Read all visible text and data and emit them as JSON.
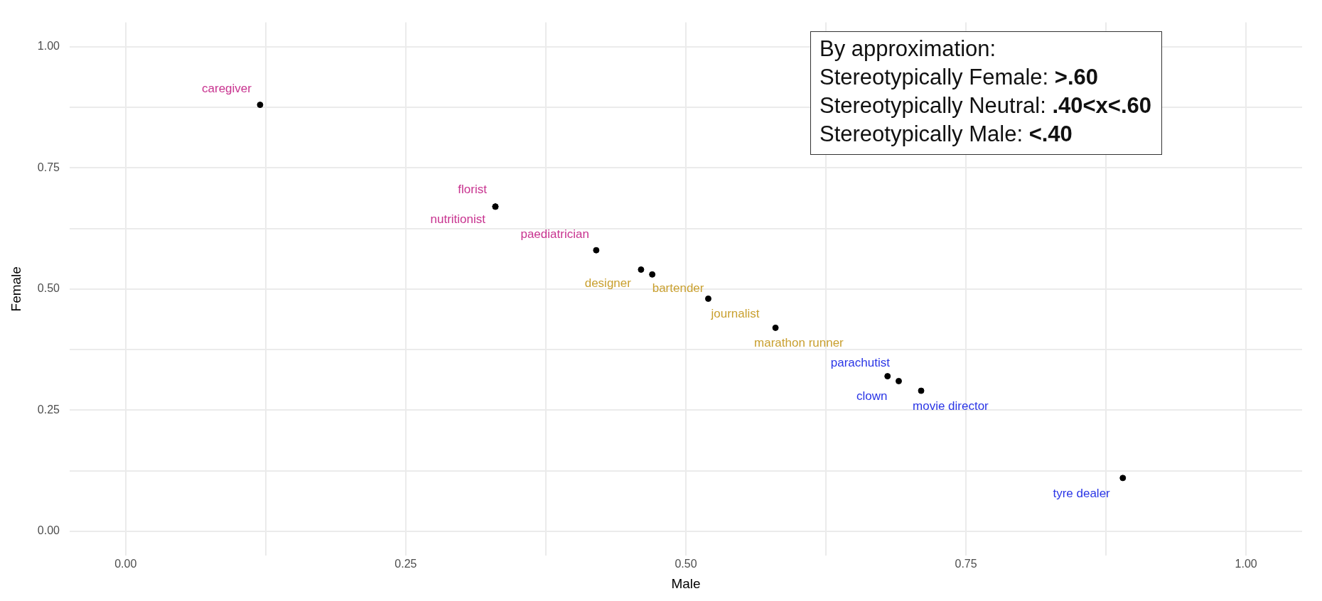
{
  "chart_data": {
    "type": "scatter",
    "xlabel": "Male",
    "ylabel": "Female",
    "xlim": [
      -0.05,
      1.05
    ],
    "ylim": [
      -0.05,
      1.05
    ],
    "xticks": [
      {
        "value": 0,
        "label": "0.00"
      },
      {
        "value": 0.125,
        "label": null
      },
      {
        "value": 0.25,
        "label": "0.25"
      },
      {
        "value": 0.375,
        "label": null
      },
      {
        "value": 0.5,
        "label": "0.50"
      },
      {
        "value": 0.625,
        "label": null
      },
      {
        "value": 0.75,
        "label": "0.75"
      },
      {
        "value": 0.875,
        "label": null
      },
      {
        "value": 1,
        "label": "1.00"
      }
    ],
    "yticks": [
      {
        "value": 0,
        "label": "0.00"
      },
      {
        "value": 0.125,
        "label": null
      },
      {
        "value": 0.25,
        "label": "0.25"
      },
      {
        "value": 0.375,
        "label": null
      },
      {
        "value": 0.5,
        "label": "0.50"
      },
      {
        "value": 0.625,
        "label": null
      },
      {
        "value": 0.75,
        "label": "0.75"
      },
      {
        "value": 0.875,
        "label": null
      },
      {
        "value": 1,
        "label": "1.00"
      }
    ],
    "grid": true,
    "legend": false,
    "marker": "circle",
    "series": [
      {
        "color": "#000000",
        "x": [
          0.12,
          0.33,
          0.33,
          0.42
        ],
        "values": [
          0.88,
          0.67,
          0.67,
          0.58
        ],
        "value_labels": [
          "caregiver",
          "florist",
          "nutritionist",
          "paediatrician"
        ]
      },
      {
        "color": "#000000",
        "x": [
          0.46,
          0.47,
          0.52,
          0.58
        ],
        "values": [
          0.54,
          0.53,
          0.48,
          0.42
        ],
        "value_labels": [
          "designer",
          "bartender",
          "journalist",
          "marathon runner"
        ]
      },
      {
        "color": "#000000",
        "x": [
          0.68,
          0.69,
          0.71,
          0.89
        ],
        "values": [
          0.32,
          0.31,
          0.29,
          0.11
        ],
        "value_labels": [
          "parachutist",
          "clown",
          "movie director",
          "tyre dealer"
        ]
      }
    ],
    "annotations": [
      "By approximation:",
      "Stereotypically Female: >.60",
      "Stereotypically Neutral: .40<x<.60",
      "Stereotypically Male: <.40"
    ]
  }
}
